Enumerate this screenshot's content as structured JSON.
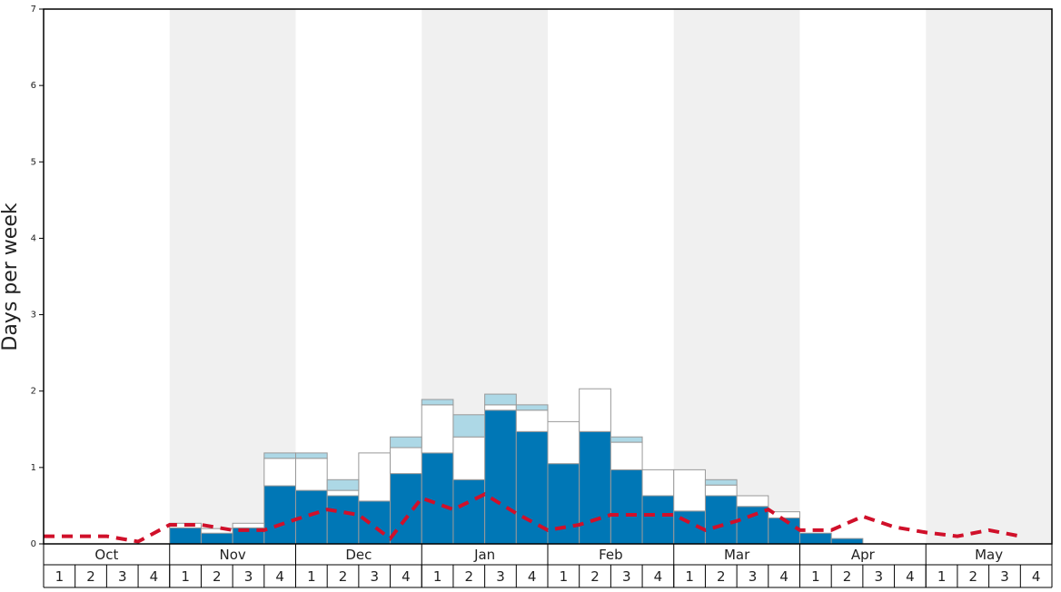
{
  "chart_data": {
    "type": "stacked-bar-line",
    "y_label": "Days per week",
    "months": [
      "Oct",
      "Nov",
      "Dec",
      "Jan",
      "Feb",
      "Mar",
      "Apr",
      "May"
    ],
    "categories": [
      "1",
      "2",
      "3",
      "4",
      "1",
      "2",
      "3",
      "4",
      "1",
      "2",
      "3",
      "4",
      "1",
      "2",
      "3",
      "4",
      "1",
      "2",
      "3",
      "4",
      "1",
      "2",
      "3",
      "4",
      "1",
      "2",
      "3",
      "4",
      "1",
      "2",
      "3",
      "4"
    ],
    "ylim": [
      0,
      7
    ],
    "yticks": [
      0,
      1,
      2,
      3,
      4,
      5,
      6,
      7
    ],
    "band_color": "#f0f0f0",
    "series": [
      {
        "color": "#0077b6",
        "values": [
          0,
          0,
          0,
          0,
          0.21,
          0.14,
          0.21,
          0.76,
          0.7,
          0.63,
          0.56,
          0.92,
          1.19,
          0.84,
          1.75,
          1.47,
          1.05,
          1.47,
          0.97,
          0.63,
          0.43,
          0.63,
          0.49,
          0.34,
          0.14,
          0.07,
          0,
          0,
          0,
          0,
          0,
          0
        ]
      },
      {
        "color": "#ffffff",
        "values": [
          0,
          0,
          0,
          0,
          0.06,
          0.06,
          0.06,
          0.36,
          0.42,
          0.07,
          0.63,
          0.34,
          0.63,
          0.56,
          0.07,
          0.28,
          0.55,
          0.56,
          0.36,
          0.34,
          0.54,
          0.14,
          0.14,
          0.08,
          0,
          0,
          0,
          0,
          0,
          0,
          0,
          0
        ]
      },
      {
        "color": "#add8e6",
        "values": [
          0,
          0,
          0,
          0,
          0,
          0,
          0,
          0.07,
          0.07,
          0.14,
          0,
          0.14,
          0.07,
          0.29,
          0.14,
          0.07,
          0,
          0,
          0.07,
          0,
          0,
          0.07,
          0,
          0,
          0,
          0,
          0,
          0,
          0,
          0,
          0,
          0
        ]
      }
    ],
    "line": {
      "color": "#d0102a",
      "values": [
        0.1,
        0.1,
        0.1,
        0.03,
        0.25,
        0.25,
        0.18,
        0.18,
        0.32,
        0.45,
        0.38,
        0.07,
        0.6,
        0.45,
        0.65,
        0.4,
        0.18,
        0.25,
        0.38,
        0.38,
        0.38,
        0.18,
        0.3,
        0.45,
        0.18,
        0.18,
        0.36,
        0.22,
        0.15,
        0.1,
        0.18,
        0.1
      ]
    }
  }
}
